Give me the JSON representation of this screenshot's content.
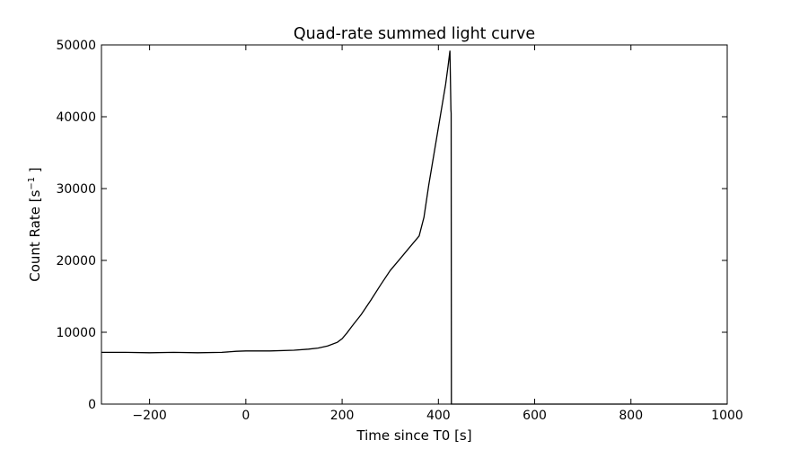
{
  "chart_data": {
    "type": "line",
    "title": "Quad-rate summed light curve",
    "xlabel": "Time since T0 [s]",
    "ylabel_prefix": "Count Rate [s",
    "ylabel_sup": "−1",
    "ylabel_suffix": " ]",
    "xlim": [
      -300,
      1000
    ],
    "ylim": [
      0,
      50000
    ],
    "xticks": [
      -200,
      0,
      200,
      400,
      600,
      800,
      1000
    ],
    "xtick_labels": [
      "−200",
      "0",
      "200",
      "400",
      "600",
      "800",
      "1000"
    ],
    "yticks": [
      0,
      10000,
      20000,
      30000,
      40000,
      50000
    ],
    "ytick_labels": [
      "0",
      "10000",
      "20000",
      "30000",
      "40000",
      "50000"
    ],
    "grid": false,
    "line_color": "#000000",
    "series": [
      {
        "x": [
          -300,
          -250,
          -200,
          -150,
          -100,
          -50,
          -20,
          0,
          50,
          100,
          130,
          150,
          170,
          190,
          200,
          210,
          220,
          240,
          260,
          280,
          300,
          320,
          340,
          350,
          360,
          370,
          380,
          390,
          400,
          410,
          415,
          420,
          424,
          426,
          426.5,
          427,
          428,
          430,
          500,
          600,
          700,
          800,
          900,
          1000
        ],
        "y": [
          7200,
          7200,
          7150,
          7200,
          7150,
          7200,
          7350,
          7400,
          7400,
          7500,
          7650,
          7800,
          8100,
          8600,
          9100,
          9900,
          10800,
          12500,
          14500,
          16600,
          18600,
          20200,
          21800,
          22600,
          23400,
          26000,
          30500,
          34500,
          38500,
          42500,
          44500,
          47000,
          49200,
          41000,
          40500,
          0,
          0,
          0,
          0,
          0,
          0,
          0,
          0,
          0
        ]
      }
    ]
  }
}
